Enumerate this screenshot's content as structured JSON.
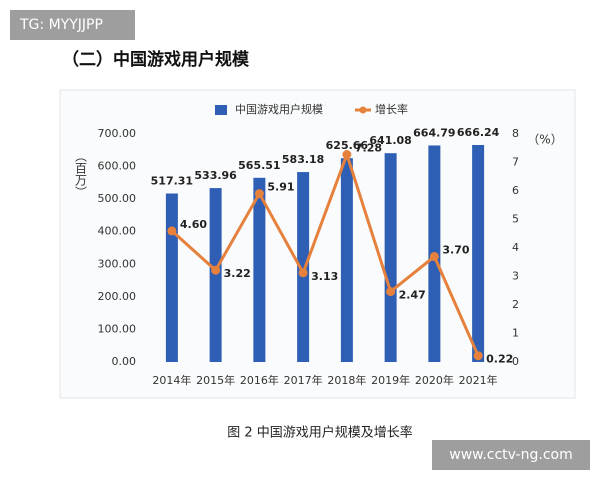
{
  "watermark": "TG: MYYJJPP",
  "heading": "（二）中国游戏用户规模",
  "caption": "图 2 中国游戏用户规模及增长率",
  "footer_watermark": "www.cctv-ng.com",
  "chart_data": {
    "type": "bar",
    "categories": [
      "2014年",
      "2015年",
      "2016年",
      "2017年",
      "2018年",
      "2019年",
      "2020年",
      "2021年"
    ],
    "series": [
      {
        "name": "中国游戏用户规模",
        "color": "#2e5fb4",
        "values": [
          517.31,
          533.96,
          565.51,
          583.18,
          625.66,
          641.08,
          664.79,
          666.24
        ]
      },
      {
        "name": "增长率",
        "type": "line",
        "axis": "y2",
        "color": "#e5813c",
        "values": [
          4.6,
          3.22,
          5.91,
          3.13,
          7.28,
          2.47,
          3.7,
          0.22
        ],
        "value_labels": [
          "4.60",
          "3.22",
          "5.91",
          "3.13",
          "7.28",
          "2.47",
          "3.70",
          "0.22"
        ]
      }
    ],
    "y_label": "（百万）",
    "y2_label": "（%）",
    "ylim": [
      0,
      700
    ],
    "yticks": [
      {
        "value": 0,
        "label": "0.00"
      },
      {
        "value": 100,
        "label": "100.00"
      },
      {
        "value": 200,
        "label": "200.00"
      },
      {
        "value": 300,
        "label": "300.00"
      },
      {
        "value": 400,
        "label": "400.00"
      },
      {
        "value": 500,
        "label": "500.00"
      },
      {
        "value": 600,
        "label": "600.00"
      },
      {
        "value": 700,
        "label": "700.00"
      }
    ],
    "y2lim": [
      0,
      8
    ],
    "y2ticks": [
      0,
      1,
      2,
      3,
      4,
      5,
      6,
      7,
      8
    ]
  }
}
